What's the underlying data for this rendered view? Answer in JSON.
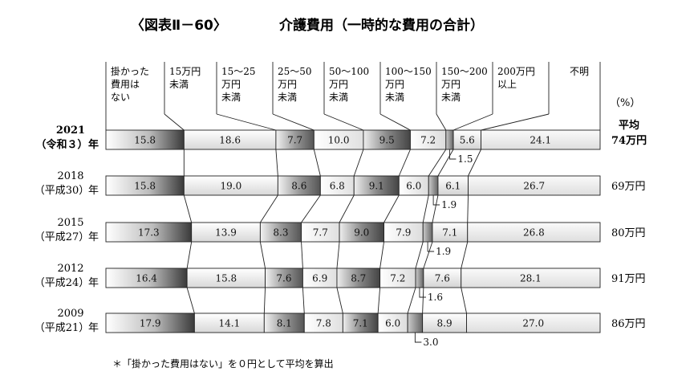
{
  "chart_data": {
    "type": "bar",
    "orientation": "horizontal-stacked-100",
    "title_left": "〈図表Ⅱ－60〉",
    "title_right": "介護費用（一時的な費用の合計）",
    "unit_label": "（%）",
    "avg_header": "平均",
    "categories": [
      [
        "掛かった",
        "費用は",
        "ない"
      ],
      [
        "15万円",
        "未満"
      ],
      [
        "15～25",
        "万円",
        "未満"
      ],
      [
        "25～50",
        "万円",
        "未満"
      ],
      [
        "50～100",
        "万円",
        "未満"
      ],
      [
        "100～150",
        "万円",
        "未満"
      ],
      [
        "150～200",
        "万円",
        "未満"
      ],
      [
        "200万円",
        "以上"
      ],
      [
        "不明"
      ]
    ],
    "rows": [
      {
        "year": "2021",
        "era": "（令和３）",
        "suffix": "年",
        "values": [
          15.8,
          18.6,
          7.7,
          10.0,
          9.5,
          7.2,
          1.5,
          5.6,
          24.1
        ],
        "labels": [
          "15.8",
          "18.6",
          "7.7",
          "10.0",
          "9.5",
          "7.2",
          "1.5",
          "5.6",
          "24.1"
        ],
        "avg": "74万円",
        "bold": true
      },
      {
        "year": "2018",
        "era": "（平成30）",
        "suffix": "年",
        "values": [
          15.8,
          19.0,
          8.6,
          6.8,
          9.1,
          6.0,
          1.9,
          6.1,
          26.7
        ],
        "labels": [
          "15.8",
          "19.0",
          "8.6",
          "6.8",
          "9.1",
          "6.0",
          "1.9",
          "6.1",
          "26.7"
        ],
        "avg": "69万円",
        "bold": false
      },
      {
        "year": "2015",
        "era": "（平成27）",
        "suffix": "年",
        "values": [
          17.3,
          13.9,
          8.3,
          7.7,
          9.0,
          7.9,
          1.9,
          7.1,
          26.8
        ],
        "labels": [
          "17.3",
          "13.9",
          "8.3",
          "7.7",
          "9.0",
          "7.9",
          "1.9",
          "7.1",
          "26.8"
        ],
        "avg": "80万円",
        "bold": false
      },
      {
        "year": "2012",
        "era": "（平成24）",
        "suffix": "年",
        "values": [
          16.4,
          15.8,
          7.6,
          6.9,
          8.7,
          7.2,
          1.6,
          7.6,
          28.1
        ],
        "labels": [
          "16.4",
          "15.8",
          "7.6",
          "6.9",
          "8.7",
          "7.2",
          "1.6",
          "7.6",
          "28.1"
        ],
        "avg": "91万円",
        "bold": false
      },
      {
        "year": "2009",
        "era": "（平成21）",
        "suffix": "年",
        "values": [
          17.9,
          14.1,
          8.1,
          7.8,
          7.1,
          6.0,
          3.0,
          8.9,
          27.0
        ],
        "labels": [
          "17.9",
          "14.1",
          "8.1",
          "7.8",
          "7.1",
          "6.0",
          "3.0",
          "8.9",
          "27.0"
        ],
        "avg": "86万円",
        "bold": false
      }
    ],
    "footnote": "＊「掛かった費用はない」を０円として平均を算出",
    "colors": {
      "dark": "#3a3a3a",
      "mid": "#8a8a8a",
      "light": "#eeeeee",
      "plain": "#ffffff"
    }
  }
}
